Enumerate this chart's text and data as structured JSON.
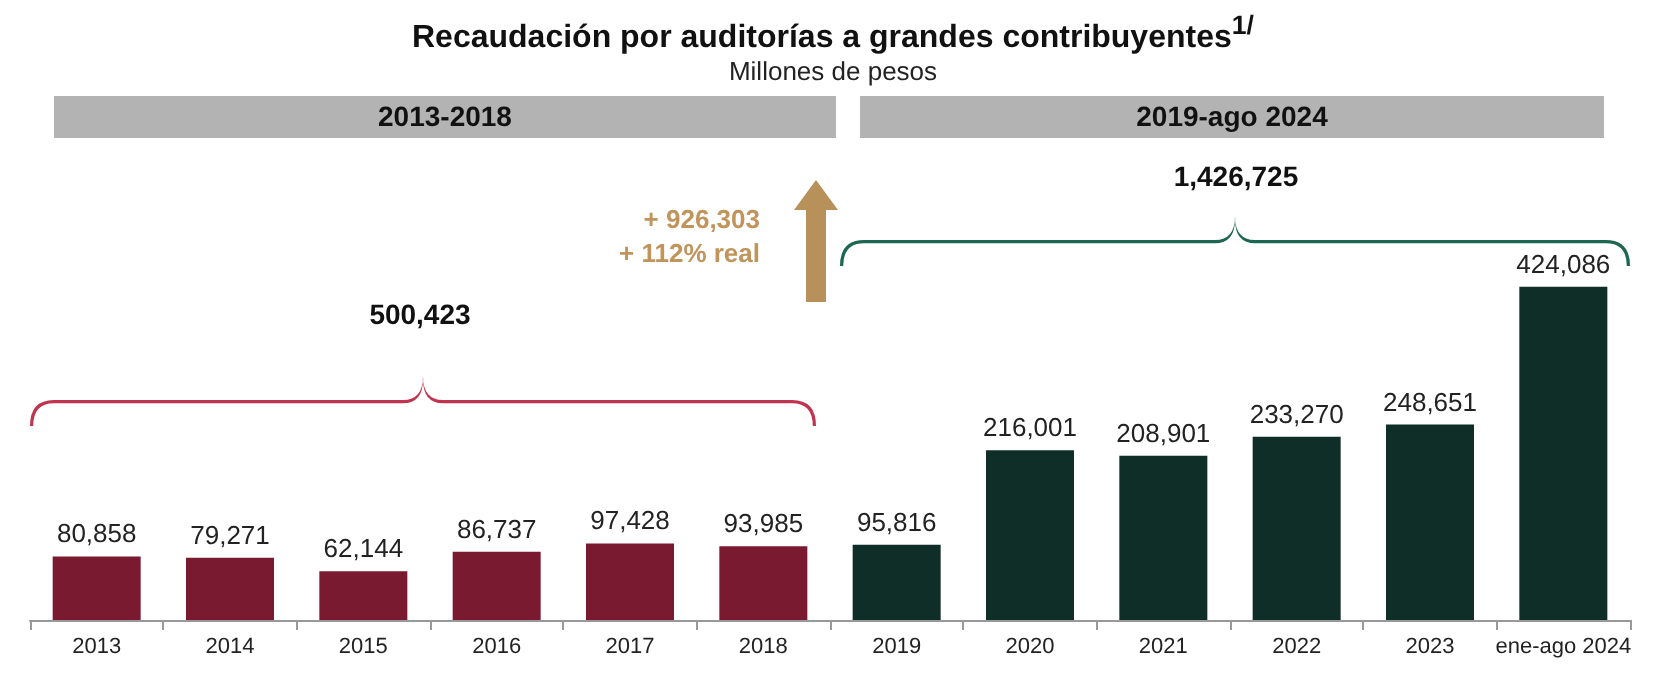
{
  "chart_data": {
    "type": "bar",
    "title": "Recaudación por auditorías a grandes contribuyentes$^{1/}$",
    "subtitle": "Millones de pesos",
    "categories": [
      "2013",
      "2014",
      "2015",
      "2016",
      "2017",
      "2018",
      "2019",
      "2020",
      "2021",
      "2022",
      "2023",
      "ene-ago 2024"
    ],
    "values": [
      80858,
      79271,
      62144,
      86737,
      97428,
      93985,
      95816,
      216001,
      208901,
      233270,
      248651,
      424086
    ],
    "colors": [
      "#7a1a31",
      "#7a1a31",
      "#7a1a31",
      "#7a1a31",
      "#7a1a31",
      "#7a1a31",
      "#0e2e27",
      "#0e2e27",
      "#0e2e27",
      "#0e2e27",
      "#0e2e27",
      "#0e2e27"
    ],
    "value_labels": [
      "80,858",
      "79,271",
      "62,144",
      "86,737",
      "97,428",
      "93,985",
      "95,816",
      "216,001",
      "208,901",
      "233,270",
      "248,651",
      "424,086"
    ],
    "tick_labels": "x",
    "annotations": [
      "2013-2018",
      "2019-ago 2024",
      "500,423",
      "1,426,725",
      "+ 926,303",
      "+ 112% real"
    ]
  }
}
